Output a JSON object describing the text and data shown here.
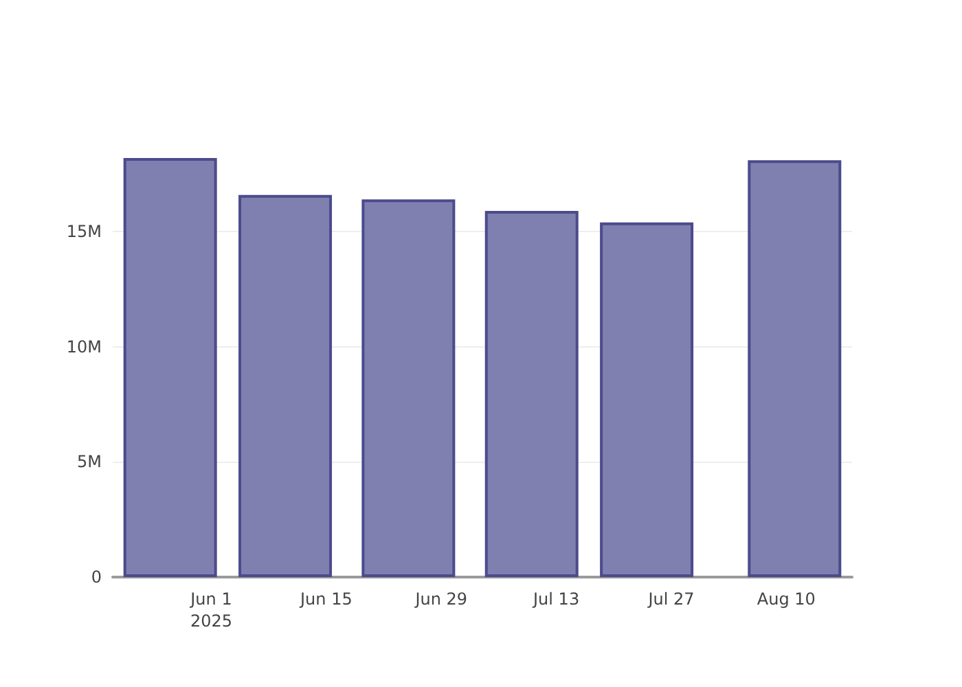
{
  "chart_data": {
    "type": "bar",
    "x": [
      "2025-05-27",
      "2025-06-10",
      "2025-06-25",
      "2025-07-10",
      "2025-07-24",
      "2025-08-11"
    ],
    "values": [
      18200000,
      16600000,
      16400000,
      15900000,
      15400000,
      18100000
    ],
    "color": "#7f7fb0",
    "xlim": [
      "2025-05-20",
      "2025-08-18"
    ],
    "xticks": [
      {
        "value": "2025-06-01",
        "label": "Jun 1\n2025"
      },
      {
        "value": "2025-06-15",
        "label": "Jun 15"
      },
      {
        "value": "2025-06-29",
        "label": "Jun 29"
      },
      {
        "value": "2025-07-13",
        "label": "Jul 13"
      },
      {
        "value": "2025-07-27",
        "label": "Jul 27"
      },
      {
        "value": "2025-08-10",
        "label": "Aug 10"
      }
    ],
    "ylim": [
      0,
      18200000
    ],
    "yticks": [
      0,
      {
        "value": 5000000,
        "label": "5M"
      },
      {
        "value": 10000000,
        "label": "10M"
      },
      {
        "value": 15000000,
        "label": "15M"
      }
    ],
    "grid": "y"
  }
}
